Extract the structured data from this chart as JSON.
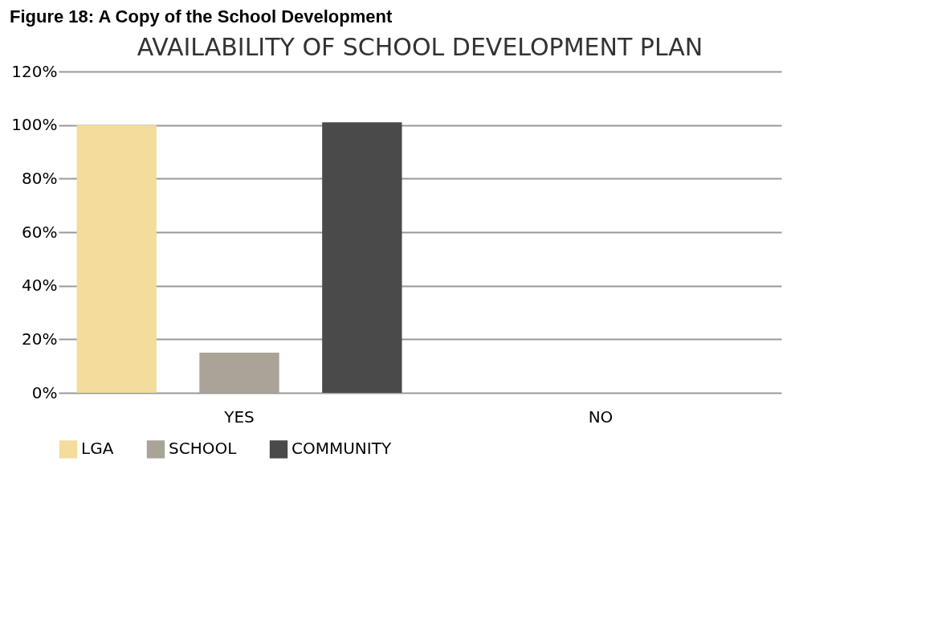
{
  "chart_data": {
    "type": "bar",
    "title": "AVAILABILITY OF SCHOOL DEVELOPMENT PLAN",
    "annotations": [
      "Figure 18: A Copy of the School Development"
    ],
    "categories": [
      "YES",
      "NO"
    ],
    "series": [
      {
        "name": "LGA",
        "color": "#f3dc9c",
        "values": [
          100,
          0
        ]
      },
      {
        "name": "SCHOOL",
        "color": "#aaa498",
        "values": [
          15,
          0
        ]
      },
      {
        "name": "COMMUNITY",
        "color": "#4a4a4a",
        "values": [
          101,
          0
        ]
      }
    ],
    "ylim": [
      0,
      120
    ],
    "yticks": [
      {
        "value": 0,
        "label": "0%"
      },
      {
        "value": 20,
        "label": "20%"
      },
      {
        "value": 40,
        "label": "40%"
      },
      {
        "value": 60,
        "label": "60%"
      },
      {
        "value": 80,
        "label": "80%"
      },
      {
        "value": 100,
        "label": "100%"
      },
      {
        "value": 120,
        "label": "120%"
      }
    ],
    "grid": "y",
    "legend": "bottom"
  }
}
